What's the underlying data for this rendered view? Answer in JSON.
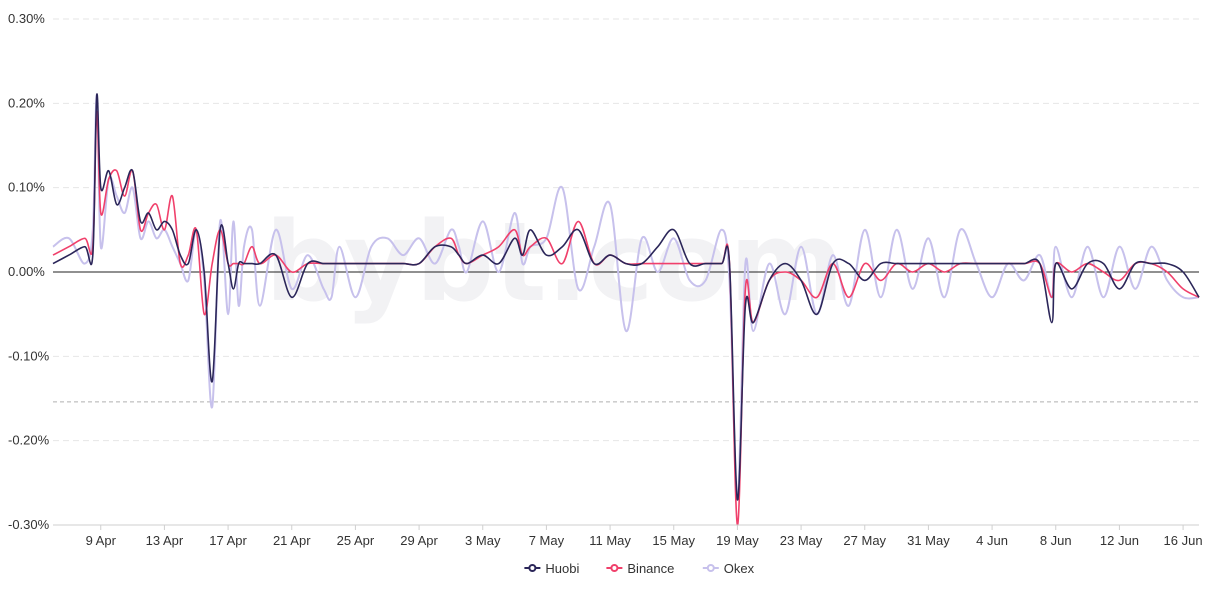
{
  "chart_data": {
    "type": "line",
    "title": "",
    "xlabel": "",
    "ylabel": "",
    "watermark": "bybt.com",
    "xlim": [
      "2021-04-06",
      "2021-06-17"
    ],
    "ylim": [
      -0.3,
      0.3
    ],
    "y_unit": "%",
    "yticks": [
      "0.30%",
      "0.20%",
      "0.10%",
      "0.00%",
      "-0.10%",
      "-0.20%",
      "-0.30%"
    ],
    "ytick_values": [
      0.3,
      0.2,
      0.1,
      0.0,
      -0.1,
      -0.2,
      -0.3
    ],
    "xticks": [
      "9 Apr",
      "13 Apr",
      "17 Apr",
      "21 Apr",
      "25 Apr",
      "29 Apr",
      "3 May",
      "7 May",
      "11 May",
      "15 May",
      "19 May",
      "23 May",
      "27 May",
      "31 May",
      "4 Jun",
      "8 Jun",
      "12 Jun",
      "16 Jun"
    ],
    "xtick_dates": [
      "2021-04-09",
      "2021-04-13",
      "2021-04-17",
      "2021-04-21",
      "2021-04-25",
      "2021-04-29",
      "2021-05-03",
      "2021-05-07",
      "2021-05-11",
      "2021-05-15",
      "2021-05-19",
      "2021-05-23",
      "2021-05-27",
      "2021-05-31",
      "2021-06-04",
      "2021-06-08",
      "2021-06-12",
      "2021-06-16"
    ],
    "reference_line_value": -0.154,
    "grid": true,
    "legend_position": "bottom-center",
    "series": [
      {
        "name": "Huobi",
        "color": "#2b2659",
        "x": [
          "2021-04-06",
          "2021-04-07",
          "2021-04-08",
          "2021-04-08T12:00",
          "2021-04-08T18:00",
          "2021-04-09",
          "2021-04-09T12:00",
          "2021-04-10",
          "2021-04-10T12:00",
          "2021-04-11",
          "2021-04-11T12:00",
          "2021-04-12",
          "2021-04-12T12:00",
          "2021-04-13",
          "2021-04-13T12:00",
          "2021-04-14",
          "2021-04-14T12:00",
          "2021-04-15",
          "2021-04-15T12:00",
          "2021-04-16",
          "2021-04-16T12:00",
          "2021-04-17",
          "2021-04-17T08:00",
          "2021-04-17T16:00",
          "2021-04-18",
          "2021-04-18T12:00",
          "2021-04-19",
          "2021-04-20",
          "2021-04-21",
          "2021-04-22",
          "2021-04-23",
          "2021-04-23T12:00",
          "2021-04-24",
          "2021-04-25",
          "2021-04-26",
          "2021-04-27",
          "2021-04-28",
          "2021-04-29",
          "2021-04-30",
          "2021-05-01",
          "2021-05-01T12:00",
          "2021-05-02",
          "2021-05-03",
          "2021-05-04",
          "2021-05-05",
          "2021-05-05T12:00",
          "2021-05-06",
          "2021-05-07",
          "2021-05-08",
          "2021-05-09",
          "2021-05-10",
          "2021-05-11",
          "2021-05-12",
          "2021-05-13",
          "2021-05-14",
          "2021-05-15",
          "2021-05-16",
          "2021-05-17",
          "2021-05-18",
          "2021-05-18T12:00",
          "2021-05-19",
          "2021-05-19T12:00",
          "2021-05-20",
          "2021-05-21",
          "2021-05-22",
          "2021-05-23",
          "2021-05-24",
          "2021-05-25",
          "2021-05-26",
          "2021-05-27",
          "2021-05-28",
          "2021-05-29",
          "2021-05-30",
          "2021-05-31",
          "2021-06-01",
          "2021-06-02",
          "2021-06-03",
          "2021-06-04",
          "2021-06-05",
          "2021-06-06",
          "2021-06-07",
          "2021-06-07T18:00",
          "2021-06-08",
          "2021-06-09",
          "2021-06-10",
          "2021-06-11",
          "2021-06-12",
          "2021-06-13",
          "2021-06-14",
          "2021-06-15",
          "2021-06-16",
          "2021-06-17"
        ],
        "values": [
          0.01,
          0.02,
          0.03,
          0.02,
          0.21,
          0.1,
          0.12,
          0.08,
          0.1,
          0.12,
          0.06,
          0.07,
          0.05,
          0.06,
          0.05,
          0.02,
          0.01,
          0.05,
          0.0,
          -0.13,
          0.05,
          0.01,
          -0.02,
          0.01,
          0.01,
          0.01,
          0.01,
          0.02,
          -0.03,
          0.01,
          0.01,
          0.01,
          0.01,
          0.01,
          0.01,
          0.01,
          0.01,
          0.01,
          0.03,
          0.03,
          0.02,
          0.01,
          0.02,
          0.01,
          0.04,
          0.02,
          0.05,
          0.02,
          0.03,
          0.05,
          0.01,
          0.02,
          0.01,
          0.01,
          0.03,
          0.05,
          0.01,
          0.01,
          0.01,
          0.01,
          -0.27,
          -0.04,
          -0.06,
          -0.01,
          0.01,
          -0.01,
          -0.05,
          0.01,
          0.01,
          -0.01,
          0.01,
          0.01,
          0.01,
          0.01,
          0.01,
          0.01,
          0.01,
          0.01,
          0.01,
          0.01,
          0.01,
          -0.06,
          0.01,
          -0.02,
          0.01,
          0.01,
          -0.02,
          0.01,
          0.01,
          0.01,
          0.0,
          -0.03
        ],
        "note": ""
      },
      {
        "name": "Binance",
        "color": "#f0406b",
        "x": [
          "2021-04-06",
          "2021-04-07",
          "2021-04-08",
          "2021-04-08T12:00",
          "2021-04-08T18:00",
          "2021-04-09",
          "2021-04-09T12:00",
          "2021-04-10",
          "2021-04-10T12:00",
          "2021-04-11",
          "2021-04-11T12:00",
          "2021-04-12",
          "2021-04-12T12:00",
          "2021-04-13",
          "2021-04-13T12:00",
          "2021-04-14",
          "2021-04-14T12:00",
          "2021-04-15",
          "2021-04-15T12:00",
          "2021-04-16",
          "2021-04-16T12:00",
          "2021-04-17",
          "2021-04-17T08:00",
          "2021-04-17T16:00",
          "2021-04-18",
          "2021-04-18T12:00",
          "2021-04-19",
          "2021-04-20",
          "2021-04-21",
          "2021-04-22",
          "2021-04-23",
          "2021-04-23T12:00",
          "2021-04-24",
          "2021-04-25",
          "2021-04-26",
          "2021-04-27",
          "2021-04-28",
          "2021-04-29",
          "2021-04-30",
          "2021-05-01",
          "2021-05-01T12:00",
          "2021-05-02",
          "2021-05-03",
          "2021-05-04",
          "2021-05-05",
          "2021-05-05T12:00",
          "2021-05-06",
          "2021-05-07",
          "2021-05-08",
          "2021-05-09",
          "2021-05-10",
          "2021-05-11",
          "2021-05-12",
          "2021-05-13",
          "2021-05-14",
          "2021-05-15",
          "2021-05-16",
          "2021-05-17",
          "2021-05-18",
          "2021-05-18T12:00",
          "2021-05-19",
          "2021-05-19T12:00",
          "2021-05-20",
          "2021-05-21",
          "2021-05-22",
          "2021-05-23",
          "2021-05-24",
          "2021-05-25",
          "2021-05-26",
          "2021-05-27",
          "2021-05-28",
          "2021-05-29",
          "2021-05-30",
          "2021-05-31",
          "2021-06-01",
          "2021-06-02",
          "2021-06-03",
          "2021-06-04",
          "2021-06-05",
          "2021-06-06",
          "2021-06-07",
          "2021-06-07T18:00",
          "2021-06-08",
          "2021-06-09",
          "2021-06-10",
          "2021-06-11",
          "2021-06-12",
          "2021-06-13",
          "2021-06-14",
          "2021-06-15",
          "2021-06-16",
          "2021-06-17"
        ],
        "values": [
          0.02,
          0.03,
          0.04,
          0.03,
          0.19,
          0.07,
          0.11,
          0.12,
          0.09,
          0.12,
          0.05,
          0.07,
          0.08,
          0.05,
          0.09,
          0.01,
          0.02,
          0.05,
          -0.05,
          0.01,
          0.05,
          0.01,
          0.01,
          0.01,
          0.01,
          0.03,
          0.01,
          0.02,
          0.0,
          0.01,
          0.01,
          0.01,
          0.01,
          0.01,
          0.01,
          0.01,
          0.01,
          0.01,
          0.03,
          0.04,
          0.02,
          0.01,
          0.02,
          0.03,
          0.05,
          0.02,
          0.03,
          0.04,
          0.01,
          0.06,
          0.01,
          0.02,
          0.01,
          0.01,
          0.01,
          0.01,
          0.01,
          0.01,
          0.01,
          0.01,
          -0.3,
          -0.02,
          -0.06,
          -0.01,
          0.0,
          -0.01,
          -0.03,
          0.01,
          -0.03,
          0.01,
          -0.01,
          0.01,
          0.0,
          0.01,
          0.0,
          0.01,
          0.01,
          0.01,
          0.01,
          0.01,
          0.01,
          -0.03,
          0.01,
          0.0,
          0.01,
          0.0,
          -0.01,
          0.01,
          0.01,
          0.0,
          -0.02,
          -0.03
        ],
        "note": ""
      },
      {
        "name": "Okex",
        "color": "#c7c1ec",
        "x": [
          "2021-04-06",
          "2021-04-07",
          "2021-04-08",
          "2021-04-08T12:00",
          "2021-04-08T18:00",
          "2021-04-09",
          "2021-04-09T12:00",
          "2021-04-10",
          "2021-04-10T12:00",
          "2021-04-11",
          "2021-04-11T12:00",
          "2021-04-12",
          "2021-04-12T12:00",
          "2021-04-13",
          "2021-04-13T12:00",
          "2021-04-14",
          "2021-04-14T12:00",
          "2021-04-15",
          "2021-04-15T12:00",
          "2021-04-16",
          "2021-04-16T12:00",
          "2021-04-17",
          "2021-04-17T08:00",
          "2021-04-17T16:00",
          "2021-04-18",
          "2021-04-18T12:00",
          "2021-04-19",
          "2021-04-20",
          "2021-04-21",
          "2021-04-22",
          "2021-04-23",
          "2021-04-23T12:00",
          "2021-04-24",
          "2021-04-25",
          "2021-04-26",
          "2021-04-27",
          "2021-04-28",
          "2021-04-29",
          "2021-04-30",
          "2021-05-01",
          "2021-05-01T12:00",
          "2021-05-02",
          "2021-05-03",
          "2021-05-04",
          "2021-05-05",
          "2021-05-05T12:00",
          "2021-05-06",
          "2021-05-07",
          "2021-05-08",
          "2021-05-09",
          "2021-05-10",
          "2021-05-11",
          "2021-05-12",
          "2021-05-13",
          "2021-05-14",
          "2021-05-15",
          "2021-05-16",
          "2021-05-17",
          "2021-05-18",
          "2021-05-18T12:00",
          "2021-05-19",
          "2021-05-19T12:00",
          "2021-05-20",
          "2021-05-21",
          "2021-05-22",
          "2021-05-23",
          "2021-05-24",
          "2021-05-25",
          "2021-05-26",
          "2021-05-27",
          "2021-05-28",
          "2021-05-29",
          "2021-05-30",
          "2021-05-31",
          "2021-06-01",
          "2021-06-02",
          "2021-06-03",
          "2021-06-04",
          "2021-06-05",
          "2021-06-06",
          "2021-06-07",
          "2021-06-07T18:00",
          "2021-06-08",
          "2021-06-09",
          "2021-06-10",
          "2021-06-11",
          "2021-06-12",
          "2021-06-13",
          "2021-06-14",
          "2021-06-15",
          "2021-06-16",
          "2021-06-17"
        ],
        "values": [
          0.03,
          0.04,
          0.01,
          0.05,
          0.21,
          0.03,
          0.11,
          0.09,
          0.07,
          0.1,
          0.04,
          0.06,
          0.04,
          0.05,
          0.03,
          0.01,
          -0.01,
          0.05,
          -0.01,
          -0.16,
          0.06,
          -0.05,
          0.06,
          -0.04,
          0.03,
          0.05,
          -0.04,
          0.05,
          -0.02,
          0.02,
          -0.02,
          -0.03,
          0.03,
          -0.03,
          0.03,
          0.04,
          0.02,
          0.04,
          0.01,
          0.05,
          0.03,
          0.0,
          0.06,
          0.0,
          0.07,
          0.01,
          0.03,
          0.04,
          0.1,
          -0.02,
          0.03,
          0.08,
          -0.07,
          0.04,
          0.0,
          0.04,
          -0.01,
          -0.01,
          0.05,
          -0.01,
          -0.27,
          0.01,
          -0.07,
          0.01,
          -0.05,
          0.03,
          -0.05,
          0.02,
          -0.04,
          0.05,
          -0.03,
          0.05,
          -0.02,
          0.04,
          -0.03,
          0.05,
          0.01,
          -0.03,
          0.01,
          -0.01,
          0.02,
          -0.03,
          0.03,
          -0.03,
          0.03,
          -0.03,
          0.03,
          -0.02,
          0.03,
          -0.01,
          -0.03,
          -0.03
        ],
        "note": ""
      }
    ]
  }
}
